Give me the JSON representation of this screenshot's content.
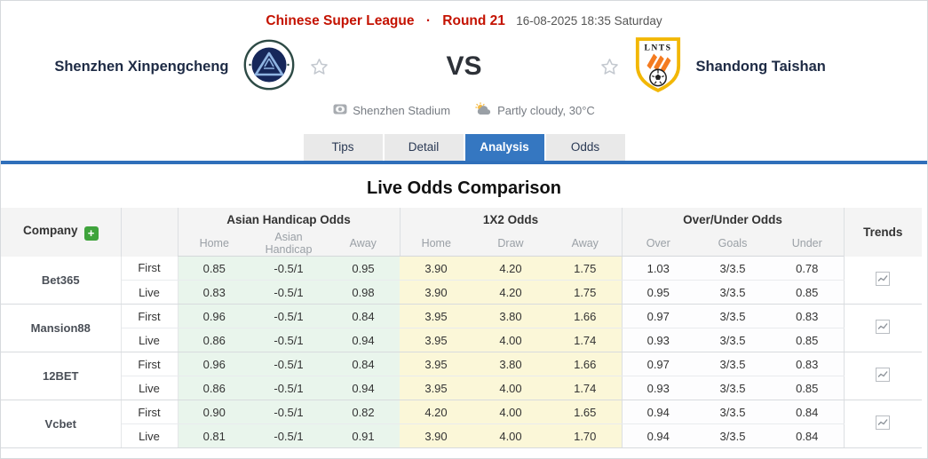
{
  "colors": {
    "accent_red": "#c41200",
    "tab_active_blue": "#3577c1",
    "underline_blue": "#2f6fba",
    "handicap_green_bg": "#e9f5ec",
    "x12_yellow_bg": "#fbf7d8",
    "plus_green": "#3fa33c"
  },
  "header": {
    "league": "Chinese Super League",
    "dot": "·",
    "round": "Round 21",
    "datetime": "16-08-2025 18:35 Saturday",
    "home_team": "Shenzhen Xinpengcheng",
    "vs": "VS",
    "away_team": "Shandong Taishan",
    "venue": "Shenzhen Stadium",
    "weather": "Partly cloudy, 30°C"
  },
  "tabs": [
    {
      "label": "Tips",
      "active": false
    },
    {
      "label": "Detail",
      "active": false
    },
    {
      "label": "Analysis",
      "active": true
    },
    {
      "label": "Odds",
      "active": false
    }
  ],
  "section_title": "Live Odds Comparison",
  "odds_table": {
    "company_header": "Company",
    "add_company_label": "+",
    "trends_header": "Trends",
    "groups": [
      {
        "label": "Asian Handicap Odds",
        "cols": [
          "Home",
          "Asian Handicap",
          "Away"
        ]
      },
      {
        "label": "1X2 Odds",
        "cols": [
          "Home",
          "Draw",
          "Away"
        ]
      },
      {
        "label": "Over/Under Odds",
        "cols": [
          "Over",
          "Goals",
          "Under"
        ]
      }
    ],
    "rows": [
      {
        "company": "Bet365",
        "lines": [
          {
            "type": "First",
            "ah": [
              "0.85",
              "-0.5/1",
              "0.95"
            ],
            "x12": [
              "3.90",
              "4.20",
              "1.75"
            ],
            "ou": [
              "1.03",
              "3/3.5",
              "0.78"
            ]
          },
          {
            "type": "Live",
            "ah": [
              "0.83",
              "-0.5/1",
              "0.98"
            ],
            "x12": [
              "3.90",
              "4.20",
              "1.75"
            ],
            "ou": [
              "0.95",
              "3/3.5",
              "0.85"
            ]
          }
        ]
      },
      {
        "company": "Mansion88",
        "lines": [
          {
            "type": "First",
            "ah": [
              "0.96",
              "-0.5/1",
              "0.84"
            ],
            "x12": [
              "3.95",
              "3.80",
              "1.66"
            ],
            "ou": [
              "0.97",
              "3/3.5",
              "0.83"
            ]
          },
          {
            "type": "Live",
            "ah": [
              "0.86",
              "-0.5/1",
              "0.94"
            ],
            "x12": [
              "3.95",
              "4.00",
              "1.74"
            ],
            "ou": [
              "0.93",
              "3/3.5",
              "0.85"
            ]
          }
        ]
      },
      {
        "company": "12BET",
        "lines": [
          {
            "type": "First",
            "ah": [
              "0.96",
              "-0.5/1",
              "0.84"
            ],
            "x12": [
              "3.95",
              "3.80",
              "1.66"
            ],
            "ou": [
              "0.97",
              "3/3.5",
              "0.83"
            ]
          },
          {
            "type": "Live",
            "ah": [
              "0.86",
              "-0.5/1",
              "0.94"
            ],
            "x12": [
              "3.95",
              "4.00",
              "1.74"
            ],
            "ou": [
              "0.93",
              "3/3.5",
              "0.85"
            ]
          }
        ]
      },
      {
        "company": "Vcbet",
        "lines": [
          {
            "type": "First",
            "ah": [
              "0.90",
              "-0.5/1",
              "0.82"
            ],
            "x12": [
              "4.20",
              "4.00",
              "1.65"
            ],
            "ou": [
              "0.94",
              "3/3.5",
              "0.84"
            ]
          },
          {
            "type": "Live",
            "ah": [
              "0.81",
              "-0.5/1",
              "0.91"
            ],
            "x12": [
              "3.90",
              "4.00",
              "1.70"
            ],
            "ou": [
              "0.94",
              "3/3.5",
              "0.84"
            ]
          }
        ]
      }
    ]
  }
}
